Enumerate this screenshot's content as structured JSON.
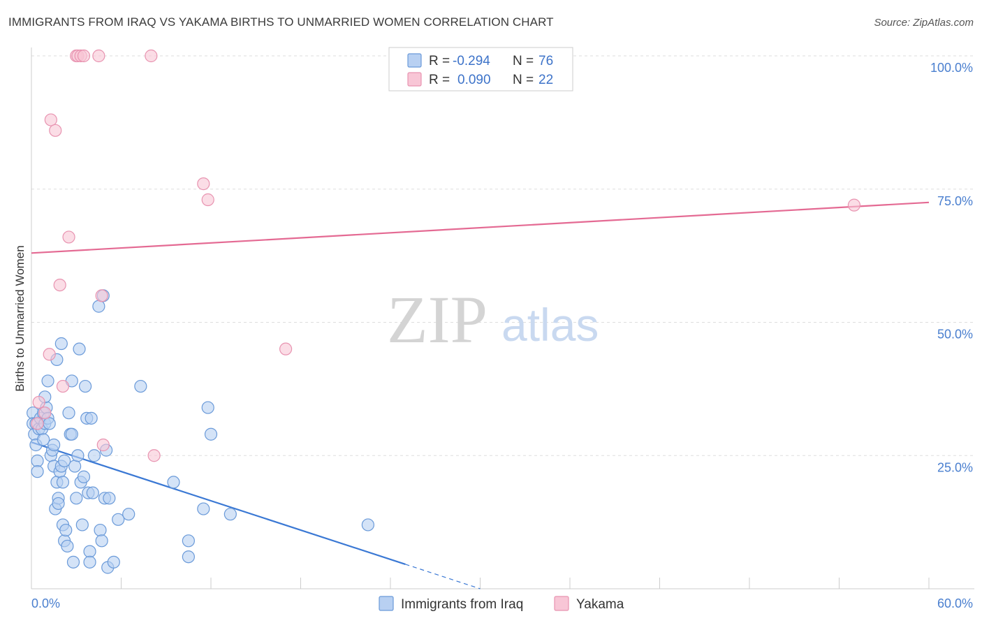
{
  "header": {
    "title": "IMMIGRANTS FROM IRAQ VS YAKAMA BIRTHS TO UNMARRIED WOMEN CORRELATION CHART",
    "source": "Source: ZipAtlas.com"
  },
  "watermark": {
    "zip": "ZIP",
    "atlas": "atlas"
  },
  "legend": {
    "rows": [
      {
        "r_label": "R =",
        "r_value": "-0.294",
        "n_label": "N =",
        "n_value": "76"
      },
      {
        "r_label": "R =",
        "r_value": "0.090",
        "n_label": "N =",
        "n_value": "22"
      }
    ]
  },
  "colors": {
    "blue": "#3a78d4",
    "blue_fill": "#b8d0f2",
    "blue_stroke": "#6a9ad9",
    "pink": "#e46a93",
    "pink_fill": "#f8c6d6",
    "pink_stroke": "#e893b0",
    "grid": "#dddddd"
  },
  "chart_data": {
    "type": "scatter",
    "title": "IMMIGRANTS FROM IRAQ VS YAKAMA BIRTHS TO UNMARRIED WOMEN CORRELATION CHART",
    "xlabel": "",
    "ylabel": "Births to Unmarried Women",
    "xlim": [
      0,
      60
    ],
    "ylim": [
      0,
      100
    ],
    "x_tick_labels": [
      "0.0%",
      "60.0%"
    ],
    "y_ticks": [
      25,
      50,
      75,
      100
    ],
    "y_tick_labels": [
      "25.0%",
      "50.0%",
      "75.0%",
      "100.0%"
    ],
    "grid": true,
    "series": [
      {
        "name": "Immigrants from Iraq",
        "color": "blue",
        "trend": {
          "x0": 0,
          "y0": 27.5,
          "x1": 25,
          "y1": 4.6,
          "dash_to_x": 30,
          "dash_to_y": 0
        },
        "points": [
          [
            0.1,
            33
          ],
          [
            0.1,
            31
          ],
          [
            0.2,
            29
          ],
          [
            0.3,
            31
          ],
          [
            0.3,
            27
          ],
          [
            0.4,
            24
          ],
          [
            0.5,
            30
          ],
          [
            0.6,
            32
          ],
          [
            0.7,
            30
          ],
          [
            0.8,
            33
          ],
          [
            0.8,
            28
          ],
          [
            0.9,
            31
          ],
          [
            1.0,
            34
          ],
          [
            1.1,
            32
          ],
          [
            1.1,
            39
          ],
          [
            1.2,
            31
          ],
          [
            1.3,
            25
          ],
          [
            1.4,
            26
          ],
          [
            1.5,
            27
          ],
          [
            1.5,
            23
          ],
          [
            1.7,
            43
          ],
          [
            1.7,
            20
          ],
          [
            1.6,
            15
          ],
          [
            1.8,
            17
          ],
          [
            1.8,
            16
          ],
          [
            1.9,
            22
          ],
          [
            2.0,
            46
          ],
          [
            2.0,
            23
          ],
          [
            2.1,
            20
          ],
          [
            2.1,
            12
          ],
          [
            2.2,
            9
          ],
          [
            2.3,
            11
          ],
          [
            2.4,
            8
          ],
          [
            2.5,
            33
          ],
          [
            2.6,
            29
          ],
          [
            2.7,
            29
          ],
          [
            2.7,
            39
          ],
          [
            2.8,
            5
          ],
          [
            2.9,
            23
          ],
          [
            3.0,
            17
          ],
          [
            3.1,
            25
          ],
          [
            3.2,
            45
          ],
          [
            3.3,
            20
          ],
          [
            3.4,
            12
          ],
          [
            3.5,
            21
          ],
          [
            3.6,
            38
          ],
          [
            3.7,
            32
          ],
          [
            3.8,
            18
          ],
          [
            3.9,
            7
          ],
          [
            3.9,
            5
          ],
          [
            4.0,
            32
          ],
          [
            4.1,
            18
          ],
          [
            4.2,
            25
          ],
          [
            4.5,
            53
          ],
          [
            4.6,
            11
          ],
          [
            4.7,
            9
          ],
          [
            4.8,
            55
          ],
          [
            4.9,
            17
          ],
          [
            5.0,
            26
          ],
          [
            5.1,
            4
          ],
          [
            5.2,
            17
          ],
          [
            5.5,
            5
          ],
          [
            5.8,
            13
          ],
          [
            6.5,
            14
          ],
          [
            7.3,
            38
          ],
          [
            9.5,
            20
          ],
          [
            10.5,
            9
          ],
          [
            10.5,
            6
          ],
          [
            11.5,
            15
          ],
          [
            11.8,
            34
          ],
          [
            12.0,
            29
          ],
          [
            13.3,
            14
          ],
          [
            22.5,
            12
          ],
          [
            0.4,
            22
          ],
          [
            2.2,
            24
          ],
          [
            0.9,
            36
          ]
        ]
      },
      {
        "name": "Yakama",
        "color": "pink",
        "trend": {
          "x0": 0,
          "y0": 63,
          "x1": 60,
          "y1": 72.5
        },
        "points": [
          [
            0.4,
            31
          ],
          [
            0.5,
            35
          ],
          [
            0.9,
            33
          ],
          [
            1.2,
            44
          ],
          [
            1.3,
            88
          ],
          [
            1.6,
            86
          ],
          [
            1.9,
            57
          ],
          [
            2.1,
            38
          ],
          [
            2.5,
            66
          ],
          [
            3.0,
            100
          ],
          [
            3.1,
            100
          ],
          [
            3.3,
            100
          ],
          [
            3.5,
            100
          ],
          [
            4.5,
            100
          ],
          [
            4.7,
            55
          ],
          [
            4.8,
            27
          ],
          [
            8.0,
            100
          ],
          [
            8.2,
            25
          ],
          [
            11.5,
            76
          ],
          [
            11.8,
            73
          ],
          [
            17.0,
            45
          ],
          [
            55.0,
            72
          ]
        ]
      }
    ]
  },
  "bottom_legend": [
    {
      "label": "Immigrants from Iraq",
      "color": "blue"
    },
    {
      "label": "Yakama",
      "color": "pink"
    }
  ]
}
